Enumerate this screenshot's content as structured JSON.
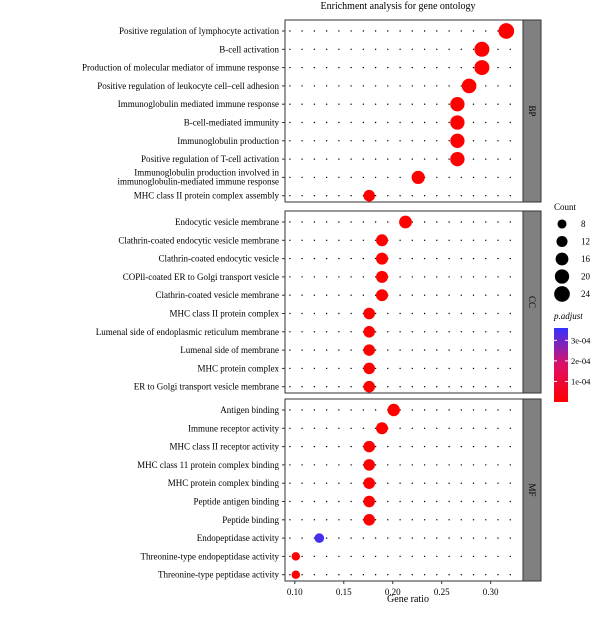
{
  "chart_data": {
    "type": "scatter",
    "title": "Enrichment analysis for gene ontology",
    "xlabel": "Gene ratio",
    "ylabel": "",
    "xlim": [
      0.09,
      0.333
    ],
    "xticks": [
      "0.10",
      "0.15",
      "0.20",
      "0.25",
      "0.30"
    ],
    "grid": "dotted",
    "facets": [
      {
        "name": "BP",
        "terms": [
          {
            "label": "Positive regulation of lymphocyte activation",
            "gene_ratio": 0.316,
            "count": 24,
            "p_adjust": 0.0
          },
          {
            "label": "B-cell activation",
            "gene_ratio": 0.291,
            "count": 22,
            "p_adjust": 0.0
          },
          {
            "label": "Production of molecular mediator of immune response",
            "gene_ratio": 0.291,
            "count": 22,
            "p_adjust": 0.0
          },
          {
            "label": "Positive regulation of leukocyte cell–cell adhesion",
            "gene_ratio": 0.278,
            "count": 21,
            "p_adjust": 0.0
          },
          {
            "label": "Immunoglobulin mediated immune response",
            "gene_ratio": 0.266,
            "count": 20,
            "p_adjust": 0.0
          },
          {
            "label": "B-cell-mediated immunity",
            "gene_ratio": 0.266,
            "count": 20,
            "p_adjust": 0.0
          },
          {
            "label": "Immunoglobulin production",
            "gene_ratio": 0.266,
            "count": 20,
            "p_adjust": 0.0
          },
          {
            "label": "Positive regulation of T-cell activation",
            "gene_ratio": 0.266,
            "count": 20,
            "p_adjust": 0.0
          },
          {
            "label": "Immunoglobulin production involved in immunoglobulin-mediated immune response",
            "gene_ratio": 0.226,
            "count": 17,
            "p_adjust": 0.0
          },
          {
            "label": "MHC class II protein complex assembly",
            "gene_ratio": 0.176,
            "count": 13,
            "p_adjust": 0.0
          }
        ]
      },
      {
        "name": "CC",
        "terms": [
          {
            "label": "Endocytic vesicle membrane",
            "gene_ratio": 0.213,
            "count": 16,
            "p_adjust": 0.0
          },
          {
            "label": "Clathrin-coated endocytic vesicle membrane",
            "gene_ratio": 0.189,
            "count": 14,
            "p_adjust": 0.0
          },
          {
            "label": "Clathrin-coated endocytic vesicle",
            "gene_ratio": 0.189,
            "count": 14,
            "p_adjust": 0.0
          },
          {
            "label": "COPll-coated ER to Golgi transport vesicle",
            "gene_ratio": 0.189,
            "count": 14,
            "p_adjust": 0.0
          },
          {
            "label": "Clathrin-coated vesicle membrane",
            "gene_ratio": 0.189,
            "count": 14,
            "p_adjust": 0.0
          },
          {
            "label": "MHC class II protein complex",
            "gene_ratio": 0.176,
            "count": 13,
            "p_adjust": 0.0
          },
          {
            "label": "Lumenal side of endoplasmic reticulum membrane",
            "gene_ratio": 0.176,
            "count": 13,
            "p_adjust": 0.0
          },
          {
            "label": "Lumenal side of membrane",
            "gene_ratio": 0.176,
            "count": 13,
            "p_adjust": 0.0
          },
          {
            "label": "MHC protein complex",
            "gene_ratio": 0.176,
            "count": 13,
            "p_adjust": 0.0
          },
          {
            "label": "ER to Golgi transport vesicle membrane",
            "gene_ratio": 0.176,
            "count": 13,
            "p_adjust": 0.0
          }
        ]
      },
      {
        "name": "MF",
        "terms": [
          {
            "label": "Antigen binding",
            "gene_ratio": 0.201,
            "count": 15,
            "p_adjust": 0.0
          },
          {
            "label": "Immune receptor activity",
            "gene_ratio": 0.189,
            "count": 14,
            "p_adjust": 0.0
          },
          {
            "label": "MHC class II receptor activity",
            "gene_ratio": 0.176,
            "count": 13,
            "p_adjust": 0.0
          },
          {
            "label": "MHC class 11 protein complex binding",
            "gene_ratio": 0.176,
            "count": 13,
            "p_adjust": 0.0
          },
          {
            "label": "MHC protein complex binding",
            "gene_ratio": 0.176,
            "count": 13,
            "p_adjust": 0.0
          },
          {
            "label": "Peptide antigen binding",
            "gene_ratio": 0.176,
            "count": 13,
            "p_adjust": 0.0
          },
          {
            "label": "Peptide binding",
            "gene_ratio": 0.176,
            "count": 13,
            "p_adjust": 0.0
          },
          {
            "label": "Endopeptidase activity",
            "gene_ratio": 0.125,
            "count": 9,
            "p_adjust": 0.00034
          },
          {
            "label": "Threonine-type endopeptidase activity",
            "gene_ratio": 0.101,
            "count": 7,
            "p_adjust": 0.0
          },
          {
            "label": "Threonine-type peptidase activity",
            "gene_ratio": 0.101,
            "count": 7,
            "p_adjust": 0.0
          }
        ]
      }
    ],
    "legend_count": {
      "title": "Count",
      "values": [
        8,
        12,
        16,
        20,
        24
      ],
      "labels": [
        "8",
        "12",
        "16",
        "20",
        "24"
      ]
    },
    "legend_color": {
      "title": "p.adjust",
      "range": [
        0,
        0.00036
      ],
      "ticks": [
        0.0001,
        0.0002,
        0.0003
      ],
      "labels": [
        "1e-04",
        "2e-04",
        "3e-04"
      ],
      "low_color": "#ff0000",
      "high_color": "#3333ff"
    },
    "colors": {
      "strip_fill": "#808080",
      "panel_border": "#333333",
      "grid_dot": "#000000"
    }
  }
}
